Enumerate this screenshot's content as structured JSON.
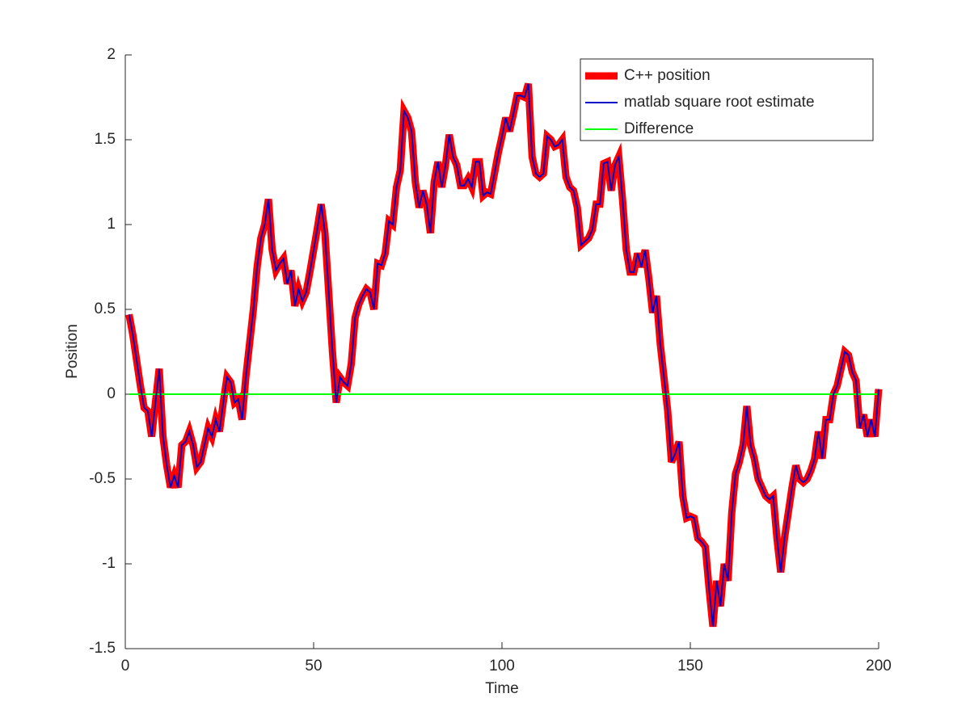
{
  "chart_data": {
    "type": "line",
    "xlabel": "Time",
    "ylabel": "Position",
    "xlim": [
      0,
      200
    ],
    "xticks": [
      0,
      50,
      100,
      150,
      200
    ],
    "ylim": [
      -1.5,
      2
    ],
    "yticks": [
      -1.5,
      -1,
      -0.5,
      0,
      0.5,
      1,
      1.5,
      2
    ],
    "legend": "upper right",
    "x": [
      1,
      2,
      3,
      4,
      5,
      6,
      7,
      8,
      9,
      10,
      11,
      12,
      13,
      14,
      15,
      16,
      17,
      18,
      19,
      20,
      21,
      22,
      23,
      24,
      25,
      26,
      27,
      28,
      29,
      30,
      31,
      32,
      33,
      34,
      35,
      36,
      37,
      38,
      39,
      40,
      41,
      42,
      43,
      44,
      45,
      46,
      47,
      48,
      49,
      50,
      51,
      52,
      53,
      54,
      55,
      56,
      57,
      58,
      59,
      60,
      61,
      62,
      63,
      64,
      65,
      66,
      67,
      68,
      69,
      70,
      71,
      72,
      73,
      74,
      75,
      76,
      77,
      78,
      79,
      80,
      81,
      82,
      83,
      84,
      85,
      86,
      87,
      88,
      89,
      90,
      91,
      92,
      93,
      94,
      95,
      96,
      97,
      98,
      99,
      100,
      101,
      102,
      103,
      104,
      105,
      106,
      107,
      108,
      109,
      110,
      111,
      112,
      113,
      114,
      115,
      116,
      117,
      118,
      119,
      120,
      121,
      122,
      123,
      124,
      125,
      126,
      127,
      128,
      129,
      130,
      131,
      132,
      133,
      134,
      135,
      136,
      137,
      138,
      139,
      140,
      141,
      142,
      143,
      144,
      145,
      146,
      147,
      148,
      149,
      150,
      151,
      152,
      153,
      154,
      155,
      156,
      157,
      158,
      159,
      160,
      161,
      162,
      163,
      164,
      165,
      166,
      167,
      168,
      169,
      170,
      171,
      172,
      173,
      174,
      175,
      176,
      177,
      178,
      179,
      180,
      181,
      182,
      183,
      184,
      185,
      186,
      187,
      188,
      189,
      190,
      191,
      192,
      193,
      194,
      195,
      196,
      197,
      198,
      199,
      200
    ],
    "series": [
      {
        "name": "C++ position",
        "color": "#ff0000",
        "values": [
          0.47,
          0.35,
          0.2,
          0.05,
          -0.08,
          -0.1,
          -0.25,
          -0.05,
          0.15,
          -0.25,
          -0.42,
          -0.55,
          -0.48,
          -0.55,
          -0.3,
          -0.28,
          -0.22,
          -0.3,
          -0.43,
          -0.4,
          -0.3,
          -0.2,
          -0.25,
          -0.15,
          -0.22,
          -0.05,
          0.1,
          0.07,
          -0.05,
          -0.03,
          -0.15,
          0.1,
          0.3,
          0.5,
          0.75,
          0.92,
          1.0,
          1.15,
          0.85,
          0.73,
          0.77,
          0.8,
          0.65,
          0.73,
          0.52,
          0.62,
          0.55,
          0.6,
          0.72,
          0.85,
          0.98,
          1.12,
          0.95,
          0.6,
          0.25,
          -0.05,
          0.1,
          0.07,
          0.05,
          0.18,
          0.45,
          0.53,
          0.58,
          0.62,
          0.6,
          0.5,
          0.77,
          0.76,
          0.83,
          1.02,
          1.0,
          1.22,
          1.32,
          1.67,
          1.63,
          1.55,
          1.25,
          1.1,
          1.2,
          1.12,
          0.95,
          1.25,
          1.37,
          1.22,
          1.35,
          1.53,
          1.4,
          1.35,
          1.23,
          1.23,
          1.27,
          1.22,
          1.37,
          1.37,
          1.17,
          1.19,
          1.18,
          1.3,
          1.42,
          1.52,
          1.63,
          1.55,
          1.65,
          1.76,
          1.76,
          1.75,
          1.83,
          1.4,
          1.3,
          1.28,
          1.3,
          1.52,
          1.5,
          1.46,
          1.47,
          1.5,
          1.28,
          1.22,
          1.2,
          1.1,
          0.88,
          0.9,
          0.92,
          0.97,
          1.12,
          1.12,
          1.36,
          1.37,
          1.2,
          1.35,
          1.4,
          1.15,
          0.85,
          0.72,
          0.72,
          0.83,
          0.75,
          0.85,
          0.68,
          0.48,
          0.58,
          0.3,
          0.1,
          -0.1,
          -0.4,
          -0.35,
          -0.28,
          -0.6,
          -0.73,
          -0.72,
          -0.73,
          -0.85,
          -0.87,
          -0.9,
          -1.15,
          -1.37,
          -1.1,
          -1.25,
          -1.0,
          -1.1,
          -0.7,
          -0.47,
          -0.4,
          -0.3,
          -0.07,
          -0.3,
          -0.38,
          -0.5,
          -0.55,
          -0.6,
          -0.62,
          -0.6,
          -0.85,
          -1.05,
          -0.85,
          -0.7,
          -0.55,
          -0.42,
          -0.5,
          -0.52,
          -0.5,
          -0.45,
          -0.38,
          -0.22,
          -0.38,
          -0.15,
          -0.15,
          0.0,
          0.05,
          0.15,
          0.25,
          0.23,
          0.13,
          0.08,
          -0.2,
          -0.12,
          -0.25,
          -0.15,
          -0.25,
          0.03
        ]
      },
      {
        "name": "matlab square root estimate",
        "color": "#0000c8",
        "values": [
          0.47,
          0.35,
          0.2,
          0.05,
          -0.08,
          -0.1,
          -0.25,
          -0.05,
          0.15,
          -0.25,
          -0.42,
          -0.55,
          -0.48,
          -0.55,
          -0.3,
          -0.28,
          -0.22,
          -0.3,
          -0.43,
          -0.4,
          -0.3,
          -0.2,
          -0.25,
          -0.15,
          -0.22,
          -0.05,
          0.1,
          0.07,
          -0.05,
          -0.03,
          -0.15,
          0.1,
          0.3,
          0.5,
          0.75,
          0.92,
          1.0,
          1.15,
          0.85,
          0.73,
          0.77,
          0.8,
          0.65,
          0.73,
          0.52,
          0.62,
          0.55,
          0.6,
          0.72,
          0.85,
          0.98,
          1.12,
          0.95,
          0.6,
          0.25,
          -0.05,
          0.1,
          0.07,
          0.05,
          0.18,
          0.45,
          0.53,
          0.58,
          0.62,
          0.6,
          0.5,
          0.77,
          0.76,
          0.83,
          1.02,
          1.0,
          1.22,
          1.32,
          1.67,
          1.63,
          1.55,
          1.25,
          1.1,
          1.2,
          1.12,
          0.95,
          1.25,
          1.37,
          1.22,
          1.35,
          1.53,
          1.4,
          1.35,
          1.23,
          1.23,
          1.27,
          1.22,
          1.37,
          1.37,
          1.17,
          1.19,
          1.18,
          1.3,
          1.42,
          1.52,
          1.63,
          1.55,
          1.65,
          1.76,
          1.76,
          1.75,
          1.83,
          1.4,
          1.3,
          1.28,
          1.3,
          1.52,
          1.5,
          1.46,
          1.47,
          1.5,
          1.28,
          1.22,
          1.2,
          1.1,
          0.88,
          0.9,
          0.92,
          0.97,
          1.12,
          1.12,
          1.36,
          1.37,
          1.2,
          1.35,
          1.4,
          1.15,
          0.85,
          0.72,
          0.72,
          0.83,
          0.75,
          0.85,
          0.68,
          0.48,
          0.58,
          0.3,
          0.1,
          -0.1,
          -0.4,
          -0.35,
          -0.28,
          -0.6,
          -0.73,
          -0.72,
          -0.73,
          -0.85,
          -0.87,
          -0.9,
          -1.15,
          -1.37,
          -1.1,
          -1.25,
          -1.0,
          -1.1,
          -0.7,
          -0.47,
          -0.4,
          -0.3,
          -0.07,
          -0.3,
          -0.38,
          -0.5,
          -0.55,
          -0.6,
          -0.62,
          -0.6,
          -0.85,
          -1.05,
          -0.85,
          -0.7,
          -0.55,
          -0.42,
          -0.5,
          -0.52,
          -0.5,
          -0.45,
          -0.38,
          -0.22,
          -0.38,
          -0.15,
          -0.15,
          0.0,
          0.05,
          0.15,
          0.25,
          0.23,
          0.13,
          0.08,
          -0.2,
          -0.12,
          -0.25,
          -0.15,
          -0.25,
          0.03
        ]
      },
      {
        "name": "Difference",
        "color": "#00ff00",
        "values": [
          0,
          0,
          0,
          0,
          0,
          0,
          0,
          0,
          0,
          0,
          0,
          0,
          0,
          0,
          0,
          0,
          0,
          0,
          0,
          0,
          0,
          0,
          0,
          0,
          0,
          0,
          0,
          0,
          0,
          0,
          0,
          0,
          0,
          0,
          0,
          0,
          0,
          0,
          0,
          0,
          0,
          0,
          0,
          0,
          0,
          0,
          0,
          0,
          0,
          0,
          0,
          0,
          0,
          0,
          0,
          0,
          0,
          0,
          0,
          0,
          0,
          0,
          0,
          0,
          0,
          0,
          0,
          0,
          0,
          0,
          0,
          0,
          0,
          0,
          0,
          0,
          0,
          0,
          0,
          0,
          0,
          0,
          0,
          0,
          0,
          0,
          0,
          0,
          0,
          0,
          0,
          0,
          0,
          0,
          0,
          0,
          0,
          0,
          0,
          0,
          0,
          0,
          0,
          0,
          0,
          0,
          0,
          0,
          0,
          0,
          0,
          0,
          0,
          0,
          0,
          0,
          0,
          0,
          0,
          0,
          0,
          0,
          0,
          0,
          0,
          0,
          0,
          0,
          0,
          0,
          0,
          0,
          0,
          0,
          0,
          0,
          0,
          0,
          0,
          0,
          0,
          0,
          0,
          0,
          0,
          0,
          0,
          0,
          0,
          0,
          0,
          0,
          0,
          0,
          0,
          0,
          0,
          0,
          0,
          0,
          0,
          0,
          0,
          0,
          0,
          0,
          0,
          0,
          0,
          0,
          0,
          0,
          0,
          0,
          0,
          0,
          0,
          0,
          0,
          0,
          0,
          0,
          0,
          0,
          0,
          0,
          0,
          0,
          0,
          0,
          0,
          0,
          0,
          0,
          0,
          0,
          0,
          0,
          0,
          0
        ]
      }
    ]
  }
}
